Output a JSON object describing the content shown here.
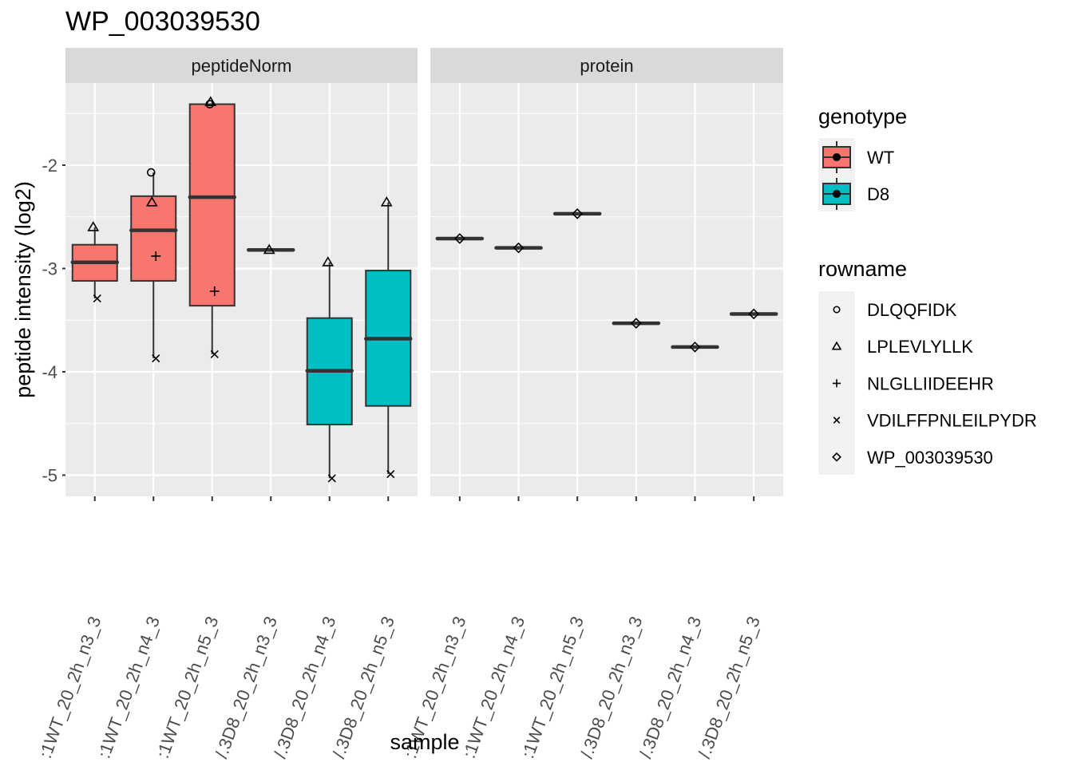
{
  "chart_data": {
    "type": "boxplot",
    "title": "WP_003039530",
    "xlabel": "sample",
    "ylabel": "peptide intensity (log2)",
    "ylim": [
      -5.2,
      -1.2
    ],
    "yticks": [
      -2,
      -3,
      -4,
      -5
    ],
    "ytick_labels": [
      "-2",
      "-3",
      "-4",
      "-5"
    ],
    "grid": true,
    "facets": [
      {
        "label": "peptideNorm",
        "categories": [
          ":1WT_20_2h_n3_3",
          ":1WT_20_2h_n4_3",
          ":1WT_20_2h_n5_3",
          "/.3D8_20_2h_n3_3",
          "/.3D8_20_2h_n4_3",
          "/.3D8_20_2h_n5_3"
        ],
        "boxes": [
          {
            "genotype": "WT",
            "lower": -3.29,
            "q1": -3.12,
            "median": -2.94,
            "q3": -2.77,
            "upper": -2.6
          },
          {
            "genotype": "WT",
            "lower": -3.87,
            "q1": -3.12,
            "median": -2.63,
            "q3": -2.3,
            "upper": -2.07
          },
          {
            "genotype": "WT",
            "lower": -3.83,
            "q1": -3.36,
            "median": -2.31,
            "q3": -1.41,
            "upper": -1.39
          },
          {
            "genotype": "D8",
            "lower": -2.82,
            "q1": -2.82,
            "median": -2.82,
            "q3": -2.82,
            "upper": -2.82
          },
          {
            "genotype": "D8",
            "lower": -5.03,
            "q1": -4.51,
            "median": -3.99,
            "q3": -3.48,
            "upper": -2.94
          },
          {
            "genotype": "D8",
            "lower": -4.99,
            "q1": -4.33,
            "median": -3.68,
            "q3": -3.02,
            "upper": -2.36
          }
        ],
        "points": [
          {
            "cat": 0,
            "rowname": "LPLEVLYLLK",
            "y": -2.6
          },
          {
            "cat": 0,
            "rowname": "VDILFFPNLEILPYDR",
            "y": -3.29
          },
          {
            "cat": 1,
            "rowname": "DLQQFIDK",
            "y": -2.07
          },
          {
            "cat": 1,
            "rowname": "LPLEVLYLLK",
            "y": -2.36
          },
          {
            "cat": 1,
            "rowname": "NLGLLIIDEEHR",
            "y": -2.88
          },
          {
            "cat": 1,
            "rowname": "VDILFFPNLEILPYDR",
            "y": -3.87
          },
          {
            "cat": 2,
            "rowname": "LPLEVLYLLK",
            "y": -1.39
          },
          {
            "cat": 2,
            "rowname": "DLQQFIDK",
            "y": -1.41
          },
          {
            "cat": 2,
            "rowname": "NLGLLIIDEEHR",
            "y": -3.22
          },
          {
            "cat": 2,
            "rowname": "VDILFFPNLEILPYDR",
            "y": -3.83
          },
          {
            "cat": 3,
            "rowname": "LPLEVLYLLK",
            "y": -2.82
          },
          {
            "cat": 4,
            "rowname": "LPLEVLYLLK",
            "y": -2.94
          },
          {
            "cat": 4,
            "rowname": "VDILFFPNLEILPYDR",
            "y": -5.03
          },
          {
            "cat": 5,
            "rowname": "LPLEVLYLLK",
            "y": -2.36
          },
          {
            "cat": 5,
            "rowname": "VDILFFPNLEILPYDR",
            "y": -4.99
          }
        ]
      },
      {
        "label": "protein",
        "categories": [
          ":1WT_20_2h_n3_3",
          ":1WT_20_2h_n4_3",
          ":1WT_20_2h_n5_3",
          "/.3D8_20_2h_n3_3",
          "/.3D8_20_2h_n4_3",
          "/.3D8_20_2h_n5_3"
        ],
        "boxes": [
          {
            "genotype": "WT",
            "lower": -2.71,
            "q1": -2.71,
            "median": -2.71,
            "q3": -2.71,
            "upper": -2.71
          },
          {
            "genotype": "WT",
            "lower": -2.8,
            "q1": -2.8,
            "median": -2.8,
            "q3": -2.8,
            "upper": -2.8
          },
          {
            "genotype": "WT",
            "lower": -2.47,
            "q1": -2.47,
            "median": -2.47,
            "q3": -2.47,
            "upper": -2.47
          },
          {
            "genotype": "D8",
            "lower": -3.53,
            "q1": -3.53,
            "median": -3.53,
            "q3": -3.53,
            "upper": -3.53
          },
          {
            "genotype": "D8",
            "lower": -3.76,
            "q1": -3.76,
            "median": -3.76,
            "q3": -3.76,
            "upper": -3.76
          },
          {
            "genotype": "D8",
            "lower": -3.44,
            "q1": -3.44,
            "median": -3.44,
            "q3": -3.44,
            "upper": -3.44
          }
        ],
        "points": [
          {
            "cat": 0,
            "rowname": "WP_003039530",
            "y": -2.71
          },
          {
            "cat": 1,
            "rowname": "WP_003039530",
            "y": -2.8
          },
          {
            "cat": 2,
            "rowname": "WP_003039530",
            "y": -2.47
          },
          {
            "cat": 3,
            "rowname": "WP_003039530",
            "y": -3.53
          },
          {
            "cat": 4,
            "rowname": "WP_003039530",
            "y": -3.76
          },
          {
            "cat": 5,
            "rowname": "WP_003039530",
            "y": -3.44
          }
        ]
      }
    ],
    "legends": [
      {
        "title": "genotype",
        "placement": "right",
        "entries": [
          {
            "label": "WT",
            "color": "#F8766D"
          },
          {
            "label": "D8",
            "color": "#00BFC4"
          }
        ]
      },
      {
        "title": "rowname",
        "placement": "right",
        "entries": [
          {
            "label": "DLQQFIDK",
            "shape": "circle"
          },
          {
            "label": "LPLEVLYLLK",
            "shape": "triangle"
          },
          {
            "label": "NLGLLIIDEEHR",
            "shape": "plus"
          },
          {
            "label": "VDILFFPNLEILPYDR",
            "shape": "cross"
          },
          {
            "label": "WP_003039530",
            "shape": "diamond"
          }
        ]
      }
    ],
    "colors": {
      "WT": "#F8766D",
      "D8": "#00BFC4",
      "panel_bg": "#EBEBEB",
      "strip_bg": "#D9D9D9",
      "grid": "#FFFFFF",
      "box_line": "#333333"
    }
  }
}
